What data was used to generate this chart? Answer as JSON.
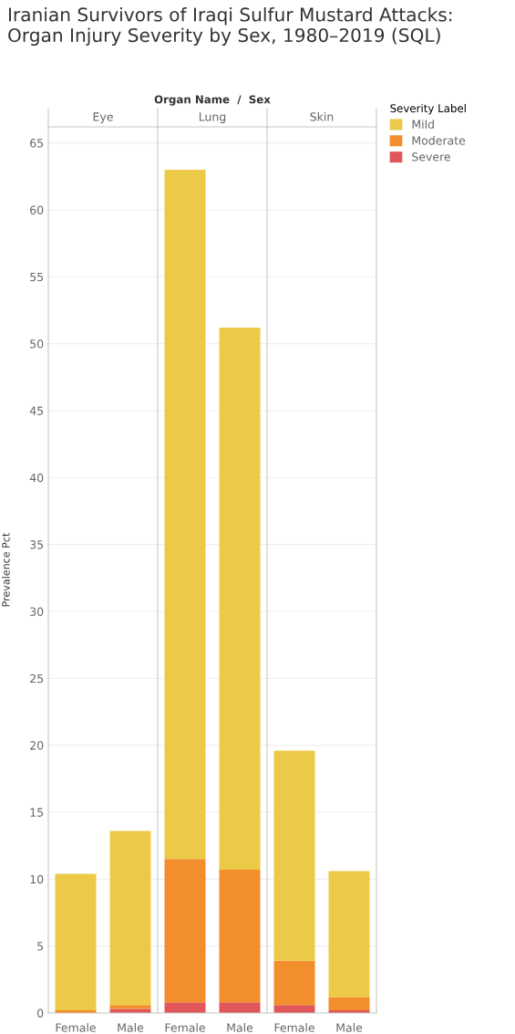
{
  "chart_data": [
    {
      "type": "bar",
      "title": "Eye",
      "stacked": true,
      "categories": [
        "Female",
        "Male"
      ],
      "ylabel": "Prevalence Pct",
      "ylim": [
        0,
        66.2
      ],
      "yticks": [
        0,
        5,
        10,
        15,
        20,
        25,
        30,
        35,
        40,
        45,
        50,
        55,
        60,
        65
      ],
      "grid": "y",
      "legend": false,
      "annotations": [
        "Iranian Survivors of Iraqi Sulfur Mustard Attacks: Organ Injury Severity by Sex, 1980–2019 (SQL)",
        "Organ Name  /  Sex"
      ],
      "series": [
        {
          "color": "#e15759",
          "values": [
            0,
            0.3
          ]
        },
        {
          "color": "#f28e2b",
          "values": [
            0.2,
            0.3
          ]
        },
        {
          "color": "#edc948",
          "values": [
            10.2,
            13.0
          ]
        }
      ]
    },
    {
      "type": "bar",
      "title": "Lung",
      "stacked": true,
      "categories": [
        "Female",
        "Male"
      ],
      "ylim": [
        0,
        66.2
      ],
      "yticks": [
        0,
        5,
        10,
        15,
        20,
        25,
        30,
        35,
        40,
        45,
        50,
        55,
        60,
        65
      ],
      "grid": "y",
      "legend": false,
      "tick_labels": "x",
      "series": [
        {
          "color": "#e15759",
          "values": [
            0.8,
            0.8
          ]
        },
        {
          "color": "#f28e2b",
          "values": [
            10.7,
            9.9
          ]
        },
        {
          "color": "#edc948",
          "values": [
            51.5,
            40.5
          ]
        }
      ]
    },
    {
      "type": "bar",
      "title": "Skin",
      "stacked": true,
      "categories": [
        "Female",
        "Male"
      ],
      "ylim": [
        0,
        66.2
      ],
      "yticks": [
        0,
        5,
        10,
        15,
        20,
        25,
        30,
        35,
        40,
        45,
        50,
        55,
        60,
        65
      ],
      "grid": "y",
      "legend": "right",
      "legend_title": "Severity Label",
      "tick_labels": "x",
      "series": [
        {
          "name": "Severe",
          "color": "#e15759",
          "values": [
            0.6,
            0.2
          ]
        },
        {
          "name": "Moderate",
          "color": "#f28e2b",
          "values": [
            3.3,
            1.0
          ]
        },
        {
          "name": "Mild",
          "color": "#edc948",
          "values": [
            15.7,
            9.4
          ]
        }
      ]
    }
  ]
}
